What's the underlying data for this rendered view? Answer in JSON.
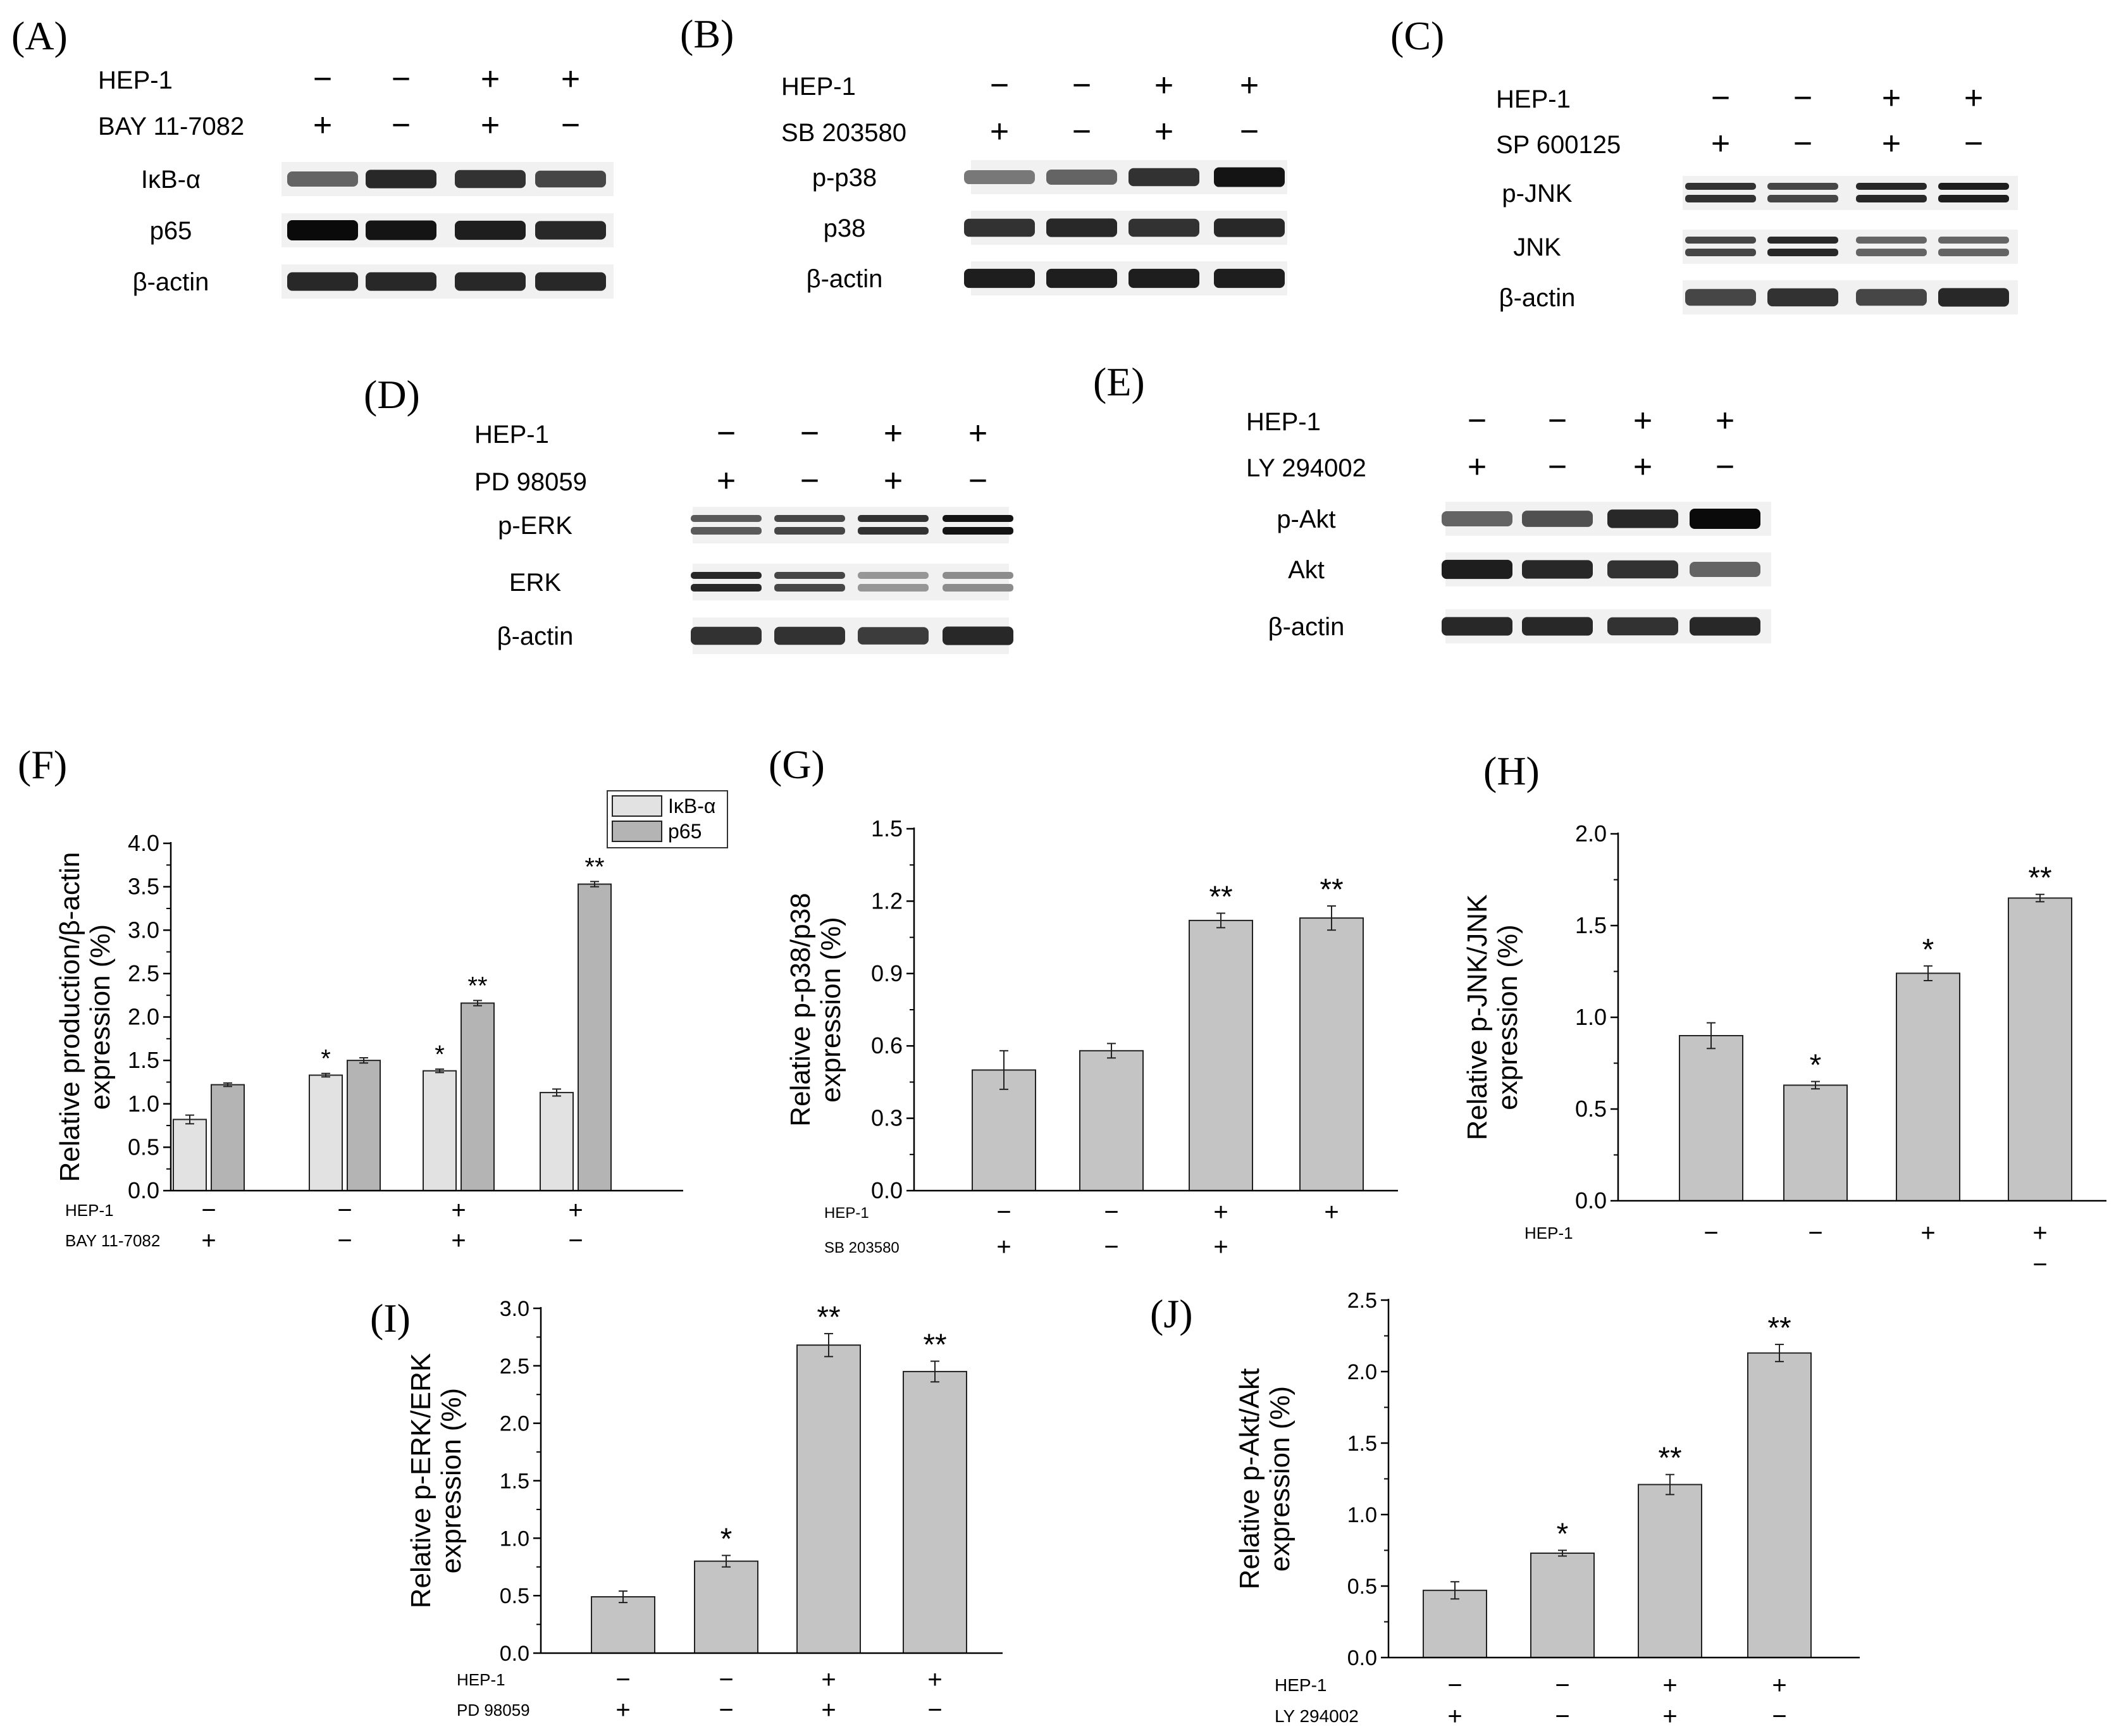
{
  "blots": [
    {
      "label": "(A)",
      "rows": [
        {
          "name": "HEP-1",
          "signs": [
            "−",
            "−",
            "+",
            "+"
          ]
        },
        {
          "name": "BAY 11-7082",
          "signs": [
            "+",
            "−",
            "+",
            "−"
          ]
        }
      ],
      "bands": [
        {
          "name": "IκB-α",
          "intensity": [
            0.55,
            0.85,
            0.8,
            0.7
          ],
          "double": false
        },
        {
          "name": "p65",
          "intensity": [
            1.0,
            0.95,
            0.9,
            0.85
          ],
          "double": false
        },
        {
          "name": "β-actin",
          "intensity": [
            0.85,
            0.85,
            0.85,
            0.85
          ],
          "double": false
        }
      ]
    },
    {
      "label": "(B)",
      "rows": [
        {
          "name": "HEP-1",
          "signs": [
            "−",
            "−",
            "+",
            "+"
          ]
        },
        {
          "name": "SB 203580",
          "signs": [
            "+",
            "−",
            "+",
            "−"
          ]
        }
      ],
      "bands": [
        {
          "name": "p-p38",
          "intensity": [
            0.45,
            0.55,
            0.8,
            0.95
          ],
          "double": false
        },
        {
          "name": "p38",
          "intensity": [
            0.8,
            0.85,
            0.8,
            0.85
          ],
          "double": false
        },
        {
          "name": "β-actin",
          "intensity": [
            0.9,
            0.9,
            0.9,
            0.9
          ],
          "double": false
        }
      ]
    },
    {
      "label": "(C)",
      "rows": [
        {
          "name": "HEP-1",
          "signs": [
            "−",
            "−",
            "+",
            "+"
          ]
        },
        {
          "name": "SP 600125",
          "signs": [
            "+",
            "−",
            "+",
            "−"
          ]
        }
      ],
      "bands": [
        {
          "name": "p-JNK",
          "intensity": [
            0.8,
            0.7,
            0.85,
            0.9
          ],
          "double": true
        },
        {
          "name": "JNK",
          "intensity": [
            0.7,
            0.85,
            0.55,
            0.55
          ],
          "double": true
        },
        {
          "name": "β-actin",
          "intensity": [
            0.7,
            0.8,
            0.7,
            0.85
          ],
          "double": false
        }
      ]
    },
    {
      "label": "(D)",
      "rows": [
        {
          "name": "HEP-1",
          "signs": [
            "−",
            "−",
            "+",
            "+"
          ]
        },
        {
          "name": "PD 98059",
          "signs": [
            "+",
            "−",
            "+",
            "−"
          ]
        }
      ],
      "bands": [
        {
          "name": "p-ERK",
          "intensity": [
            0.6,
            0.7,
            0.8,
            0.95
          ],
          "double": true
        },
        {
          "name": "ERK",
          "intensity": [
            0.85,
            0.7,
            0.3,
            0.35
          ],
          "double": true
        },
        {
          "name": "β-actin",
          "intensity": [
            0.8,
            0.8,
            0.75,
            0.85
          ],
          "double": false
        }
      ]
    },
    {
      "label": "(E)",
      "rows": [
        {
          "name": "HEP-1",
          "signs": [
            "−",
            "−",
            "+",
            "+"
          ]
        },
        {
          "name": "LY 294002",
          "signs": [
            "+",
            "−",
            "+",
            "−"
          ]
        }
      ],
      "bands": [
        {
          "name": "p-Akt",
          "intensity": [
            0.55,
            0.65,
            0.85,
            1.0
          ],
          "double": false
        },
        {
          "name": "Akt",
          "intensity": [
            0.9,
            0.85,
            0.8,
            0.55
          ],
          "double": false
        },
        {
          "name": "β-actin",
          "intensity": [
            0.85,
            0.85,
            0.8,
            0.85
          ],
          "double": false
        }
      ]
    }
  ],
  "chart_data": [
    {
      "panel": "(F)",
      "type": "bar",
      "ylabel": [
        "Relative production/β-actin",
        "expression (%)"
      ],
      "ylim": [
        0,
        4.0
      ],
      "yticks": [
        0.0,
        0.5,
        1.0,
        1.5,
        2.0,
        2.5,
        3.0,
        3.5,
        4.0
      ],
      "ytick_labels": [
        "0.0",
        "0.5",
        "1.0",
        "1.5",
        "2.0",
        "2.5",
        "3.0",
        "3.5",
        "4.0"
      ],
      "legend": "top-right",
      "series": [
        {
          "name": "IκB-α",
          "color": "#e2e2e2",
          "values": [
            0.82,
            1.33,
            1.38,
            1.13
          ],
          "errors": [
            0.05,
            0.02,
            0.02,
            0.04
          ],
          "stars": [
            "",
            "*",
            "*",
            ""
          ]
        },
        {
          "name": "p65",
          "color": "#b4b4b4",
          "values": [
            1.22,
            1.5,
            2.16,
            3.53
          ],
          "errors": [
            0.02,
            0.03,
            0.03,
            0.03
          ],
          "stars": [
            "",
            "",
            "**",
            "**"
          ]
        }
      ],
      "treatment_rows": [
        {
          "name": "HEP-1",
          "signs": [
            "−",
            "−",
            "+",
            "+"
          ]
        },
        {
          "name": "BAY 11-7082",
          "signs": [
            "+",
            "−",
            "+",
            "−"
          ]
        }
      ]
    },
    {
      "panel": "(G)",
      "type": "bar",
      "ylabel": [
        "Relative p-p38/p38",
        "expression (%)"
      ],
      "ylim": [
        0,
        1.5
      ],
      "yticks": [
        0.0,
        0.3,
        0.6,
        0.9,
        1.2,
        1.5
      ],
      "ytick_labels": [
        "0.0",
        "0.3",
        "0.6",
        "0.9",
        "1.2",
        "1.5"
      ],
      "series": [
        {
          "name": "",
          "color": "#c4c4c4",
          "values": [
            0.5,
            0.58,
            1.12,
            1.13
          ],
          "errors": [
            0.08,
            0.03,
            0.03,
            0.05
          ],
          "stars": [
            "",
            "",
            "**",
            "**"
          ]
        }
      ],
      "treatment_rows": [
        {
          "name": "HEP-1",
          "signs": [
            "−",
            "−",
            "+",
            "+"
          ]
        },
        {
          "name": "SB 203580",
          "signs": [
            "+",
            "−",
            "+",
            ""
          ]
        }
      ]
    },
    {
      "panel": "(H)",
      "type": "bar",
      "ylabel": [
        "Relative p-JNK/JNK",
        "expression (%)"
      ],
      "ylim": [
        0,
        2.0
      ],
      "yticks": [
        0.0,
        0.5,
        1.0,
        1.5,
        2.0
      ],
      "ytick_labels": [
        "0.0",
        "0.5",
        "1.0",
        "1.5",
        "2.0"
      ],
      "series": [
        {
          "name": "",
          "color": "#c4c4c4",
          "values": [
            0.9,
            0.63,
            1.24,
            1.65
          ],
          "errors": [
            0.07,
            0.02,
            0.04,
            0.02
          ],
          "stars": [
            "",
            "*",
            "*",
            "**"
          ]
        }
      ],
      "treatment_rows": [
        {
          "name": "HEP-1",
          "signs": [
            "−",
            "−",
            "+",
            "+"
          ]
        },
        {
          "name": "",
          "signs": [
            "",
            "",
            "",
            "−"
          ]
        }
      ]
    },
    {
      "panel": "(I)",
      "type": "bar",
      "ylabel": [
        "Relative p-ERK/ERK",
        "expression (%)"
      ],
      "ylim": [
        0,
        3.0
      ],
      "yticks": [
        0.0,
        0.5,
        1.0,
        1.5,
        2.0,
        2.5,
        3.0
      ],
      "ytick_labels": [
        "0.0",
        "0.5",
        "1.0",
        "1.5",
        "2.0",
        "2.5",
        "3.0"
      ],
      "series": [
        {
          "name": "",
          "color": "#c4c4c4",
          "values": [
            0.49,
            0.8,
            2.68,
            2.45
          ],
          "errors": [
            0.05,
            0.05,
            0.1,
            0.09
          ],
          "stars": [
            "",
            "*",
            "**",
            "**"
          ]
        }
      ],
      "treatment_rows": [
        {
          "name": "HEP-1",
          "signs": [
            "−",
            "−",
            "+",
            "+"
          ]
        },
        {
          "name": "PD 98059",
          "signs": [
            "+",
            "−",
            "+",
            "−"
          ]
        }
      ]
    },
    {
      "panel": "(J)",
      "type": "bar",
      "ylabel": [
        "Relative p-Akt/Akt",
        "expression (%)"
      ],
      "ylim": [
        0,
        2.5
      ],
      "yticks": [
        0.0,
        0.5,
        1.0,
        1.5,
        2.0,
        2.5
      ],
      "ytick_labels": [
        "0.0",
        "0.5",
        "1.0",
        "1.5",
        "2.0",
        "2.5"
      ],
      "series": [
        {
          "name": "",
          "color": "#c4c4c4",
          "values": [
            0.47,
            0.73,
            1.21,
            2.13
          ],
          "errors": [
            0.06,
            0.02,
            0.07,
            0.06
          ],
          "stars": [
            "",
            "*",
            "**",
            "**"
          ]
        }
      ],
      "treatment_rows": [
        {
          "name": "HEP-1",
          "signs": [
            "−",
            "−",
            "+",
            "+"
          ]
        },
        {
          "name": "LY 294002",
          "signs": [
            "+",
            "−",
            "+",
            "−"
          ]
        }
      ]
    }
  ]
}
